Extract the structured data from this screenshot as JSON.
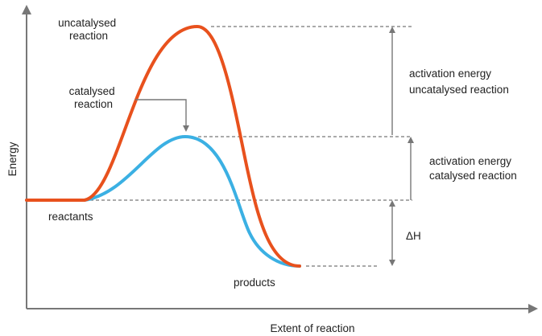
{
  "diagram": {
    "axes": {
      "y_label": "Energy",
      "x_label": "Extent of reaction"
    },
    "curves": {
      "uncatalysed": {
        "label": [
          "uncatalysed",
          "reaction"
        ],
        "color": "#e8511d"
      },
      "catalysed": {
        "label": [
          "catalysed",
          "reaction"
        ],
        "color": "#3bb0e3"
      }
    },
    "levels": {
      "reactants": "reactants",
      "products": "products"
    },
    "annotations": {
      "activation_uncatalysed": [
        "activation energy",
        "uncatalysed reaction"
      ],
      "activation_catalysed": [
        "activation energy",
        "catalysed reaction"
      ],
      "delta_h": "ΔH"
    },
    "colors": {
      "axis": "#777777",
      "text": "#222222"
    }
  }
}
